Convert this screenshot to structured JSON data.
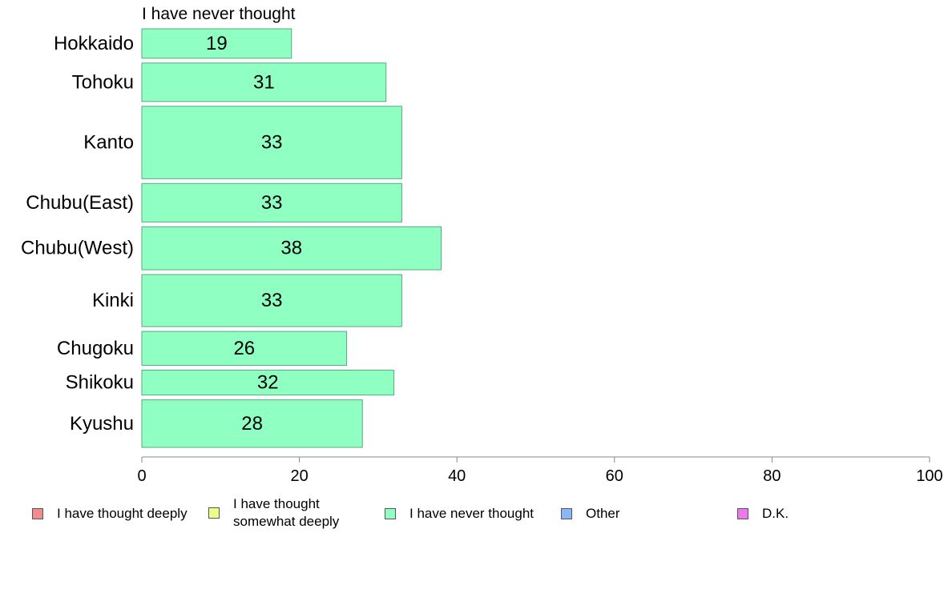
{
  "panel_title": "I have never thought",
  "chart_data": {
    "type": "bar",
    "orientation": "horizontal",
    "series_name": "I have never thought",
    "categories": [
      "Hokkaido",
      "Tohoku",
      "Kanto",
      "Chubu(East)",
      "Chubu(West)",
      "Kinki",
      "Chugoku",
      "Shikoku",
      "Kyushu"
    ],
    "values": [
      19,
      31,
      33,
      33,
      38,
      33,
      26,
      32,
      28
    ],
    "relative_band_widths": [
      0.65,
      0.85,
      1.6,
      0.85,
      0.95,
      1.15,
      0.75,
      0.55,
      1.05
    ],
    "xlim": [
      0,
      100
    ],
    "xticks": [
      0,
      20,
      40,
      60,
      80,
      100
    ],
    "grid": false,
    "bar_color": "#8fffc2",
    "bar_edge_color": "#55aa80",
    "legend_position": "bottom"
  },
  "legend": [
    {
      "label": "I have thought deeply",
      "color": "#f28b8b"
    },
    {
      "label": "I have thought\nsomewhat deeply",
      "color": "#eeff88"
    },
    {
      "label": "I have never thought",
      "color": "#8fffc2"
    },
    {
      "label": "Other",
      "color": "#88b8f8"
    },
    {
      "label": "D.K.",
      "color": "#ee77ee"
    }
  ]
}
